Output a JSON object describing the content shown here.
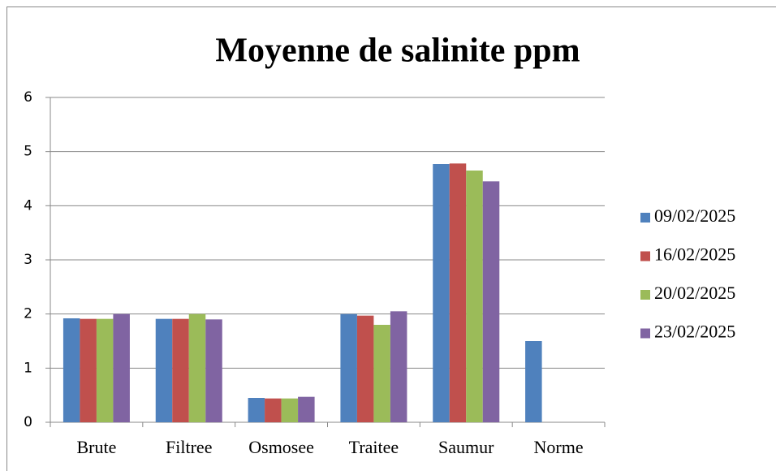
{
  "chart_data": {
    "type": "bar",
    "title": "Moyenne de salinite ppm",
    "categories": [
      "Brute",
      "Filtree",
      "Osmosee",
      "Traitee",
      "Saumur",
      "Norme"
    ],
    "series": [
      {
        "name": "09/02/2025",
        "color": "#4f81bd",
        "values": [
          1.92,
          1.91,
          0.45,
          2.0,
          4.77,
          1.5
        ]
      },
      {
        "name": "16/02/2025",
        "color": "#c0504d",
        "values": [
          1.91,
          1.91,
          0.44,
          1.97,
          4.78,
          null
        ]
      },
      {
        "name": "20/02/2025",
        "color": "#9bbb59",
        "values": [
          1.91,
          2.0,
          0.44,
          1.8,
          4.65,
          null
        ]
      },
      {
        "name": "23/02/2025",
        "color": "#8064a2",
        "values": [
          2.0,
          1.9,
          0.47,
          2.05,
          4.45,
          null
        ]
      }
    ],
    "ylim": [
      0,
      6
    ],
    "yticks": [
      0,
      1,
      2,
      3,
      4,
      5,
      6
    ],
    "grid": true,
    "legend": "right"
  }
}
